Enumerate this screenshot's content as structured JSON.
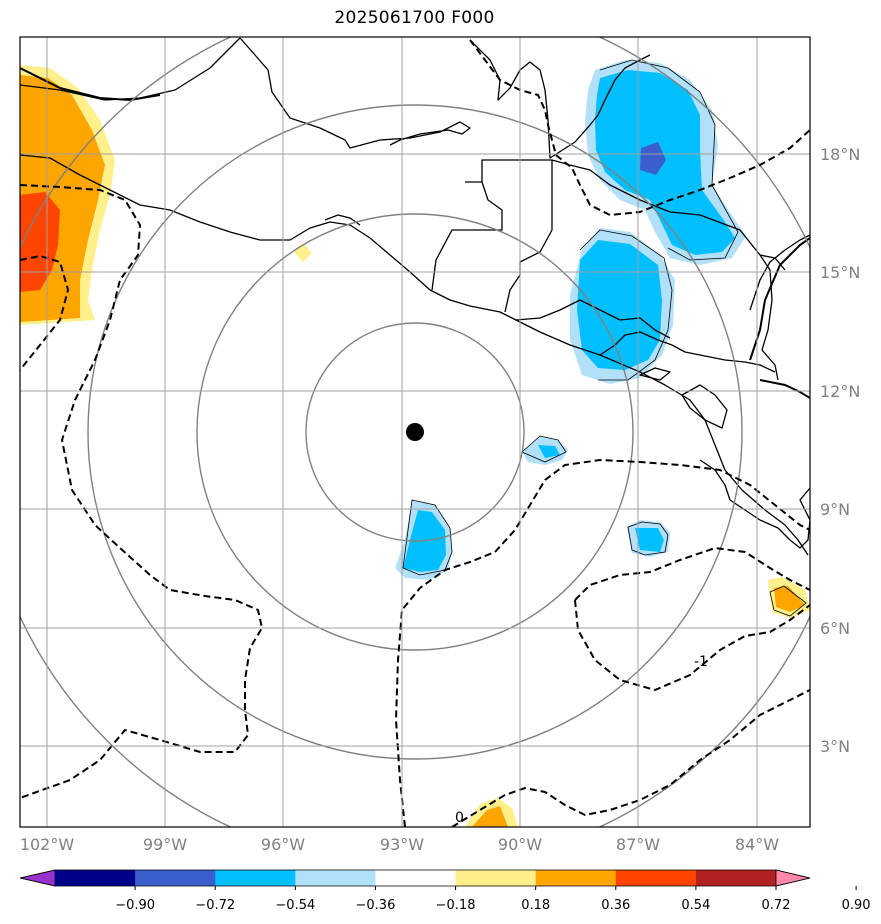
{
  "title": "2025061700 F000",
  "lon_labels": [
    "102°W",
    "99°W",
    "96°W",
    "93°W",
    "90°W",
    "87°W",
    "84°W"
  ],
  "lat_labels": [
    "18°N",
    "15°N",
    "12°N",
    "9°N",
    "6°N",
    "3°N"
  ],
  "contour_labels": [
    "0",
    "-1"
  ],
  "colorbar": {
    "levels": [
      "−0.90",
      "−0.72",
      "−0.54",
      "−0.36",
      "−0.18",
      "0.18",
      "0.36",
      "0.54",
      "0.72",
      "0.90"
    ],
    "colors": [
      "#9932cc",
      "#00008b",
      "#3a5fcd",
      "#00bfff",
      "#b2e0f8",
      "#ffffff",
      "#fff08c",
      "#ffa500",
      "#ff4500",
      "#b22222",
      "#ff88aa"
    ]
  },
  "center_marker": {
    "lon": -92.75,
    "lat": 10.9
  }
}
